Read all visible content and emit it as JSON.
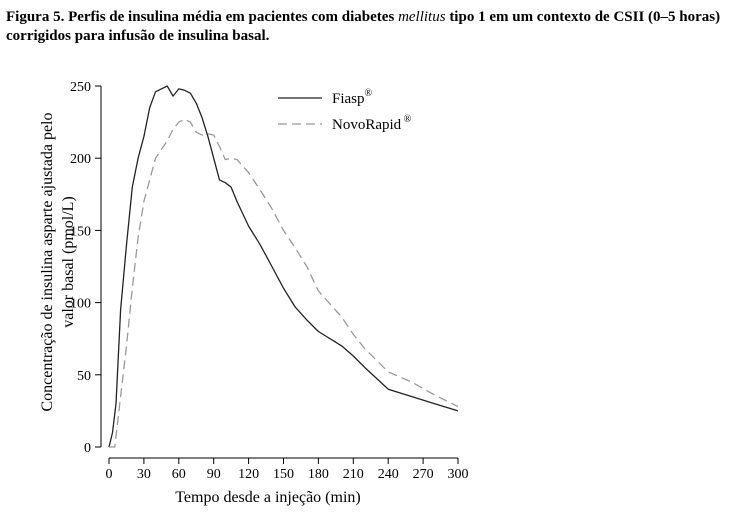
{
  "caption": {
    "prefix": "Figura 5. Perfis de insulina média em pacientes com diabetes ",
    "italic": "mellitus",
    "suffix": " tipo 1 em um contexto de CSII (0–5 horas) corrigidos para infusão de insulina basal."
  },
  "chart_data": {
    "type": "line",
    "xlabel": "Tempo desde a injeção (min)",
    "ylabel_lines": [
      "Concentração de insulina asparte ajustada pelo",
      "valor basal (pmol/L)"
    ],
    "xlim": [
      0,
      300
    ],
    "ylim": [
      0,
      250
    ],
    "xticks": [
      0,
      30,
      60,
      90,
      120,
      150,
      180,
      210,
      240,
      270,
      300
    ],
    "yticks": [
      0,
      50,
      100,
      150,
      200,
      250
    ],
    "grid": false,
    "legend_position": "top-right",
    "series": [
      {
        "name": "Fiasp",
        "name_sup": "®",
        "style": "solid",
        "color": "#222222",
        "x": [
          0,
          3,
          6,
          10,
          15,
          20,
          25,
          30,
          35,
          40,
          45,
          50,
          55,
          60,
          65,
          70,
          75,
          80,
          85,
          90,
          95,
          100,
          105,
          110,
          120,
          130,
          140,
          150,
          160,
          170,
          180,
          200,
          210,
          220,
          240,
          260,
          280,
          300
        ],
        "y": [
          0,
          10,
          30,
          95,
          140,
          180,
          200,
          215,
          235,
          246,
          248,
          250,
          243,
          248,
          247,
          245,
          238,
          228,
          215,
          200,
          185,
          183,
          180,
          170,
          153,
          140,
          125,
          110,
          97,
          88,
          80,
          70,
          63,
          55,
          40,
          35,
          30,
          25
        ]
      },
      {
        "name": "NovoRapid",
        "name_sup": "®",
        "style": "dashed",
        "color": "#999999",
        "x": [
          0,
          5,
          10,
          15,
          20,
          25,
          30,
          40,
          50,
          55,
          60,
          65,
          70,
          75,
          80,
          85,
          90,
          95,
          100,
          105,
          110,
          120,
          130,
          140,
          150,
          160,
          170,
          180,
          200,
          210,
          220,
          240,
          260,
          280,
          300
        ],
        "y": [
          0,
          0,
          35,
          70,
          110,
          145,
          170,
          200,
          212,
          220,
          225,
          227,
          225,
          218,
          216,
          217,
          216,
          208,
          199,
          200,
          199,
          190,
          178,
          165,
          150,
          138,
          125,
          108,
          90,
          78,
          68,
          52,
          45,
          36,
          28
        ]
      }
    ]
  }
}
